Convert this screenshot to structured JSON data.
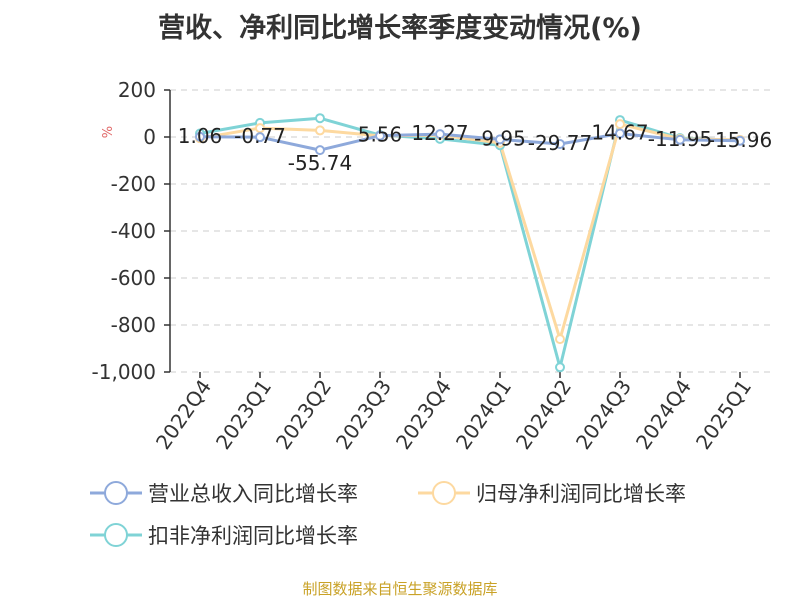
{
  "title": "营收、净利同比增长率季度变动情况(%)",
  "source": "制图数据来自恒生聚源数据库",
  "chart_data": {
    "type": "line",
    "ylabel": "%",
    "ylim": [
      -1000,
      200
    ],
    "yticks": [
      "200",
      "0",
      "-200",
      "-400",
      "-600",
      "-800",
      "-1,000"
    ],
    "ytick_values": [
      200,
      0,
      -200,
      -400,
      -600,
      -800,
      -1000
    ],
    "grid": true,
    "legend_position": "bottom",
    "categories": [
      "2022Q4",
      "2023Q1",
      "2023Q2",
      "2023Q3",
      "2023Q4",
      "2024Q1",
      "2024Q2",
      "2024Q3",
      "2024Q4",
      "2025Q1"
    ],
    "series": [
      {
        "name": "营业总收入同比增长率",
        "color": "#8ea9db",
        "values": [
          1.06,
          -0.77,
          -55.74,
          5.56,
          12.27,
          -9.95,
          -29.77,
          14.67,
          -11.95,
          -15.96
        ],
        "labels": [
          "1.06",
          "-0.77",
          "-55.74",
          "5.56",
          "12.27",
          "-9.95",
          "-29.77",
          "14.67",
          "-11.95",
          "-15.96"
        ]
      },
      {
        "name": "归母净利润同比增长率",
        "color": "#fdd9a0",
        "values": [
          -5,
          38,
          28,
          5,
          8,
          -25,
          -860,
          55,
          -8,
          -12
        ]
      },
      {
        "name": "扣非净利润同比增长率",
        "color": "#7fd3d6",
        "values": [
          15,
          60,
          80,
          8,
          -8,
          -35,
          -980,
          72,
          -5,
          -15
        ]
      }
    ]
  }
}
